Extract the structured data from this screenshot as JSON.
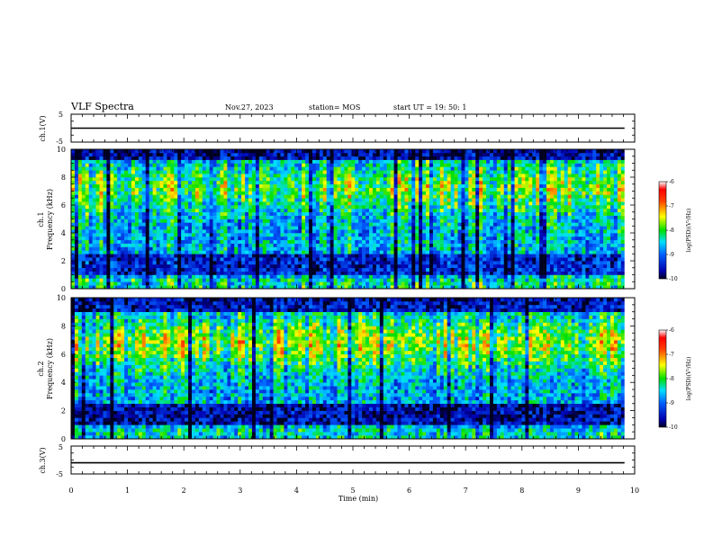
{
  "header": {
    "title": "VLF Spectra",
    "date": "Nov.27, 2023",
    "station": "station= MOS",
    "start": "start  UT  =   19: 50: 1"
  },
  "chart_data": [
    {
      "id": "ch1-voltage",
      "type": "line",
      "ylabel": "ch.1(V)",
      "ylim": [
        -5,
        5
      ],
      "yticks": [
        "5",
        "-5"
      ],
      "xlim": [
        0,
        10
      ],
      "series": [
        {
          "x": [
            0,
            9.82
          ],
          "y": [
            0,
            0
          ]
        }
      ]
    },
    {
      "id": "ch1-spectrogram",
      "type": "heatmap",
      "ylabel": "ch.1\nFrequency (kHz)",
      "ylim": [
        0,
        10
      ],
      "yticks": [
        "0",
        "2",
        "4",
        "6",
        "8",
        "10"
      ],
      "xlim": [
        0,
        10
      ],
      "data_xmax": 9.82,
      "colorbar": {
        "label": "log(PSD)(V²/Hz)",
        "range": [
          -10,
          -6
        ],
        "ticks": [
          "-6",
          "-7",
          "-8",
          "-9",
          "-10"
        ]
      }
    },
    {
      "id": "ch2-spectrogram",
      "type": "heatmap",
      "ylabel": "ch.2\nFrequency (kHz)",
      "ylim": [
        0,
        10
      ],
      "yticks": [
        "0",
        "2",
        "4",
        "6",
        "8",
        "10"
      ],
      "xlim": [
        0,
        10
      ],
      "data_xmax": 9.82,
      "colorbar": {
        "label": "log(PSD)(V²/Hz)",
        "range": [
          -10,
          -6
        ],
        "ticks": [
          "-6",
          "-7",
          "-8",
          "-9",
          "-10"
        ]
      }
    },
    {
      "id": "ch3-voltage",
      "type": "line",
      "ylabel": "ch.3(V)",
      "ylim": [
        -5,
        5
      ],
      "yticks": [
        "5",
        "-5"
      ],
      "xlim": [
        0,
        10
      ],
      "xlabel": "Time  (min)",
      "xticks": [
        "0",
        "1",
        "2",
        "3",
        "4",
        "5",
        "6",
        "7",
        "8",
        "9",
        "10"
      ],
      "series": [
        {
          "x": [
            0,
            9.82
          ],
          "y": [
            -1,
            -1
          ]
        }
      ]
    }
  ]
}
